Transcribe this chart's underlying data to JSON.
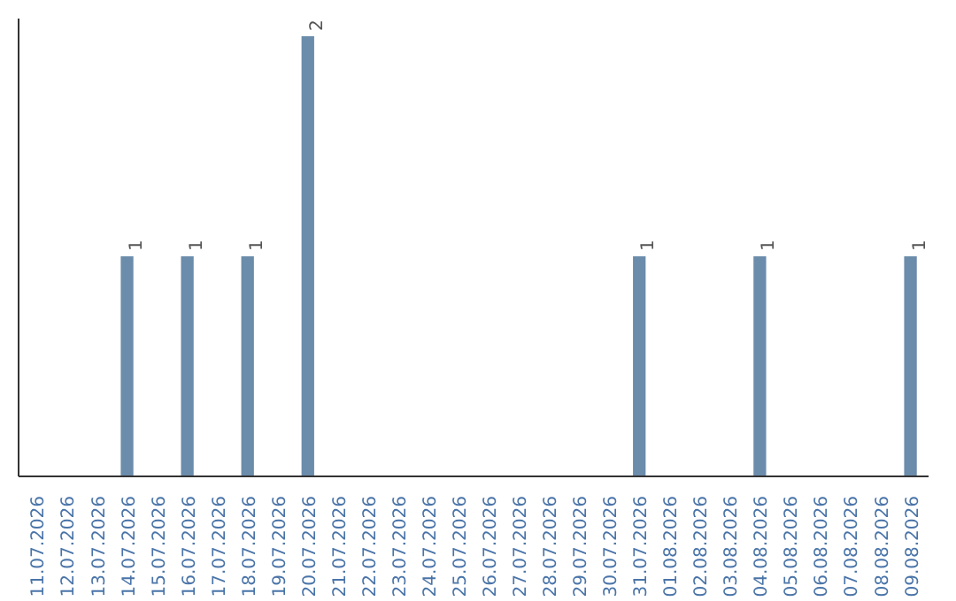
{
  "chart_data": {
    "type": "bar",
    "categories": [
      "11.07.2026",
      "12.07.2026",
      "13.07.2026",
      "14.07.2026",
      "15.07.2026",
      "16.07.2026",
      "17.07.2026",
      "18.07.2026",
      "19.07.2026",
      "20.07.2026",
      "21.07.2026",
      "22.07.2026",
      "23.07.2026",
      "24.07.2026",
      "25.07.2026",
      "26.07.2026",
      "27.07.2026",
      "28.07.2026",
      "29.07.2026",
      "30.07.2026",
      "31.07.2026",
      "01.08.2026",
      "02.08.2026",
      "03.08.2026",
      "04.08.2026",
      "05.08.2026",
      "06.08.2026",
      "07.08.2026",
      "08.08.2026",
      "09.08.2026"
    ],
    "values": [
      0,
      0,
      0,
      1,
      0,
      1,
      0,
      1,
      0,
      2,
      0,
      0,
      0,
      0,
      0,
      0,
      0,
      0,
      0,
      0,
      1,
      0,
      0,
      0,
      1,
      0,
      0,
      0,
      0,
      1
    ],
    "value_labels": [
      null,
      null,
      null,
      "1",
      null,
      "1",
      null,
      "1",
      null,
      "2",
      null,
      null,
      null,
      null,
      null,
      null,
      null,
      null,
      null,
      null,
      "1",
      null,
      null,
      null,
      "1",
      null,
      null,
      null,
      null,
      "1"
    ],
    "color": "#6b8cab",
    "tick_labels": "x",
    "grid": false
  }
}
